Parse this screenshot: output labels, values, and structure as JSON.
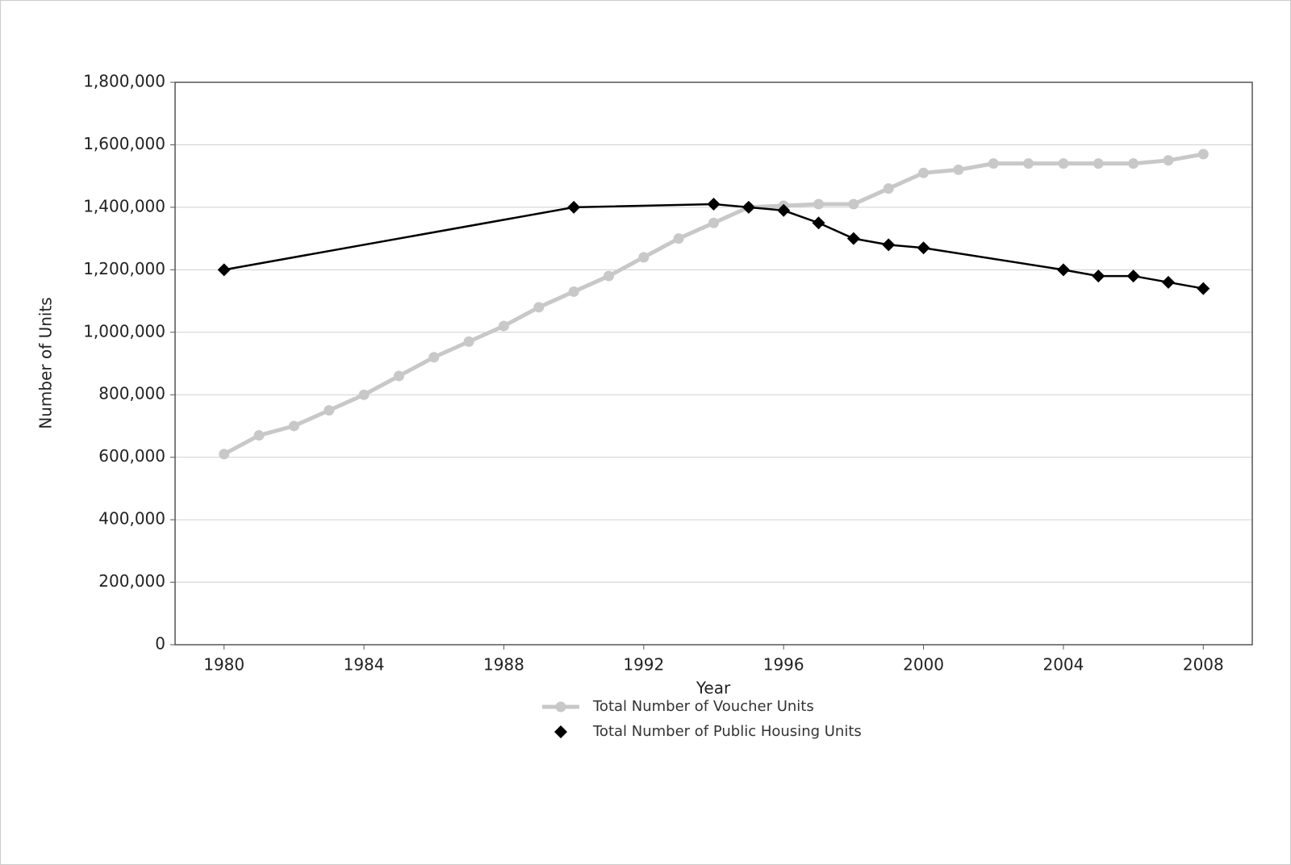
{
  "chart_data": {
    "type": "line",
    "x_label": "Year",
    "y_label": "Number of Units",
    "xlim": [
      1978.6,
      2009.4
    ],
    "xticks": [
      1980,
      1984,
      1988,
      1992,
      1996,
      2000,
      2004,
      2008
    ],
    "ylim": [
      0,
      1800000
    ],
    "yticks": [
      0,
      {
        "value": 200000,
        "label": "200,000"
      },
      {
        "value": 400000,
        "label": "400,000"
      },
      {
        "value": 600000,
        "label": "600,000"
      },
      {
        "value": 800000,
        "label": "800,000"
      },
      {
        "value": 1000000,
        "label": "1,000,000"
      },
      {
        "value": 1200000,
        "label": "1,200,000"
      },
      {
        "value": 1400000,
        "label": "1,400,000"
      },
      {
        "value": 1600000,
        "label": "1,600,000"
      },
      {
        "value": 1800000,
        "label": "1,800,000"
      }
    ],
    "grid": true,
    "series": [
      {
        "name": "Total Number of Voucher Units",
        "color": "#c8c8c8",
        "marker": "circle",
        "x": [
          1980,
          1981,
          1982,
          1983,
          1984,
          1985,
          1986,
          1987,
          1988,
          1989,
          1990,
          1991,
          1992,
          1993,
          1994,
          1995,
          1996,
          1997,
          1998,
          1999,
          2000,
          2001,
          2002,
          2003,
          2004,
          2005,
          2006,
          2007,
          2008
        ],
        "values": [
          610000,
          670000,
          700000,
          750000,
          800000,
          860000,
          920000,
          970000,
          1020000,
          1080000,
          1130000,
          1180000,
          1240000,
          1300000,
          1350000,
          1400000,
          1405000,
          1410000,
          1410000,
          1460000,
          1510000,
          1520000,
          1540000,
          1540000,
          1540000,
          1540000,
          1540000,
          1550000,
          1570000
        ]
      },
      {
        "name": "Total Number of Public Housing Units",
        "color": "#000000",
        "marker": "diamond",
        "x": [
          1980,
          1990,
          1994,
          1995,
          1996,
          1997,
          1998,
          1999,
          2000,
          2004,
          2005,
          2006,
          2007,
          2008
        ],
        "values": [
          1200000,
          1400000,
          1410000,
          1400000,
          1390000,
          1350000,
          1300000,
          1280000,
          1270000,
          1200000,
          1180000,
          1180000,
          1160000,
          1140000
        ]
      }
    ]
  }
}
